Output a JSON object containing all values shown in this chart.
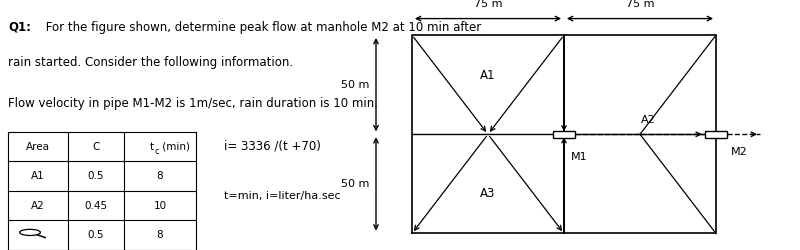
{
  "title_bold": "Q1:",
  "title_rest": " For the figure shown, determine peak flow at manhole M2 at 10 min after",
  "title_line2": "rain started. Consider the following information.",
  "subtitle": "Flow velocity in pipe M1-M2 is 1m/sec, rain duration is 10 min.",
  "table_headers": [
    "Area",
    "C",
    "tc (min)"
  ],
  "table_col0": [
    "A1",
    "A2",
    ""
  ],
  "table_col1": [
    "0.5",
    "0.45",
    "0.5"
  ],
  "table_col2": [
    "8",
    "10",
    "8"
  ],
  "formula": "i= 3336 /(t +70)",
  "formula2": "t=min, i=liter/ha.sec",
  "dim_75m_left": "75 m",
  "dim_75m_right": "75 m",
  "dim_50m_top": "50 m",
  "dim_50m_bot": "50 m",
  "label_A1": "A1",
  "label_A2": "A2",
  "label_A3": "A3",
  "label_M1": "M1",
  "label_M2": "M2",
  "bg_color": "#ffffff",
  "text_color": "#000000"
}
